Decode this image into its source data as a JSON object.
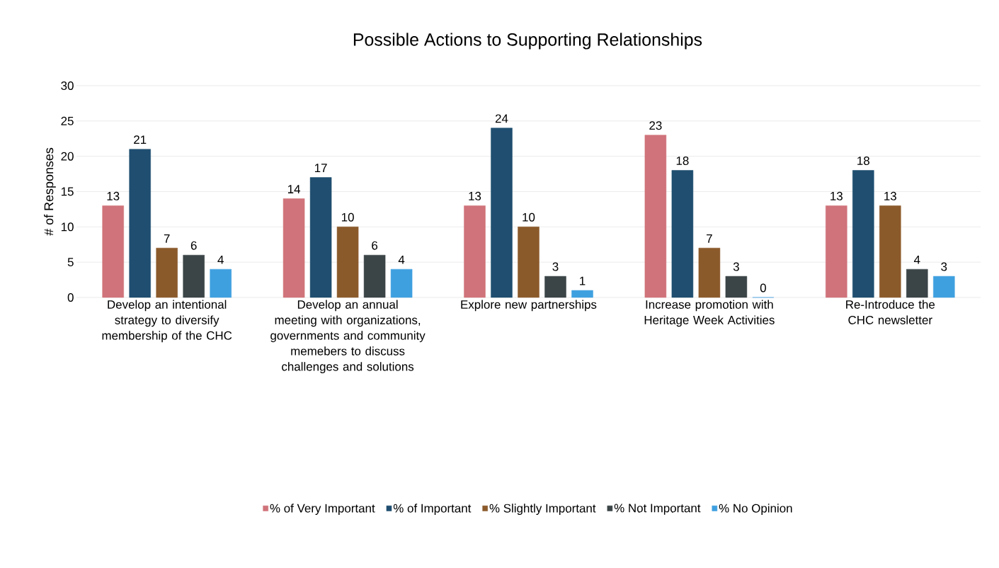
{
  "chart_data": {
    "type": "bar",
    "title": "Possible Actions to Supporting Relationships",
    "ylabel": "# of Responses",
    "categories": [
      "Develop an intentional strategy to diversify membership of the CHC",
      "Develop an annual meeting with organizations, governments and community memebers to discuss challenges and solutions",
      "Explore new partnerships",
      "Increase promotion with Heritage Week Activities",
      "Re-Introduce the CHC newsletter"
    ],
    "series": [
      {
        "name": "% of Very Important",
        "color": "#d0737a",
        "values": [
          13,
          14,
          13,
          23,
          13
        ]
      },
      {
        "name": "% of Important",
        "color": "#1f4e70",
        "values": [
          21,
          17,
          24,
          18,
          18
        ]
      },
      {
        "name": "% Slightly Important",
        "color": "#8b5a2b",
        "values": [
          7,
          10,
          10,
          7,
          13
        ]
      },
      {
        "name": "% Not Important",
        "color": "#3b4447",
        "values": [
          6,
          6,
          3,
          3,
          4
        ]
      },
      {
        "name": "% No Opinion",
        "color": "#3fa0e0",
        "values": [
          4,
          4,
          1,
          0,
          3
        ]
      }
    ],
    "ylim": [
      0,
      30
    ],
    "yticks": [
      0,
      5,
      10,
      15,
      20,
      25,
      30
    ],
    "grid": "y",
    "legend": "bottom",
    "data_labels": true
  }
}
